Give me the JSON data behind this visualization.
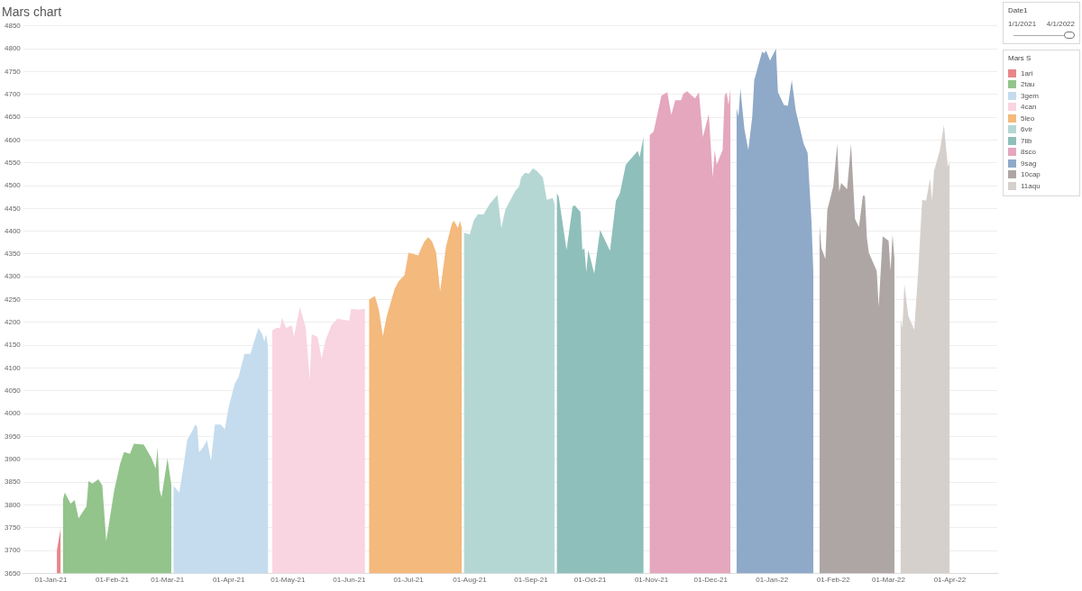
{
  "chart_data": {
    "type": "area",
    "title": "Mars chart",
    "legend_title": "Mars S",
    "legend": "top right",
    "grid": "y",
    "annotations": [
      "Date1",
      "1/1/2021",
      "4/1/2022"
    ],
    "xlim": [
      "2020-12-18",
      "2022-04-25"
    ],
    "xticks": [
      {
        "value": "2021-01-01",
        "label": "01-Jan-21"
      },
      {
        "value": "2021-02-01",
        "label": "01-Feb-21"
      },
      {
        "value": "2021-03-01",
        "label": "01-Mar-21"
      },
      {
        "value": "2021-04-01",
        "label": "01-Apr-21"
      },
      {
        "value": "2021-05-01",
        "label": "01-May-21"
      },
      {
        "value": "2021-06-01",
        "label": "01-Jun-21"
      },
      {
        "value": "2021-07-01",
        "label": "01-Jul-21"
      },
      {
        "value": "2021-08-01",
        "label": "01-Aug-21"
      },
      {
        "value": "2021-09-01",
        "label": "01-Sep-21"
      },
      {
        "value": "2021-10-01",
        "label": "01-Oct-21"
      },
      {
        "value": "2021-11-01",
        "label": "01-Nov-21"
      },
      {
        "value": "2021-12-01",
        "label": "01-Dec-21"
      },
      {
        "value": "2022-01-01",
        "label": "01-Jan-22"
      },
      {
        "value": "2022-02-01",
        "label": "01-Feb-22"
      },
      {
        "value": "2022-03-01",
        "label": "01-Mar-22"
      },
      {
        "value": "2022-04-01",
        "label": "01-Apr-22"
      }
    ],
    "ylim": [
      3650,
      4850
    ],
    "yticks": [
      3650,
      3700,
      3750,
      3800,
      3850,
      3900,
      3950,
      4000,
      4050,
      4100,
      4150,
      4200,
      4250,
      4300,
      4350,
      4400,
      4450,
      4500,
      4550,
      4600,
      4650,
      4700,
      4750,
      4800,
      4850
    ],
    "series": [
      {
        "name": "1ari",
        "color": "#e8868a",
        "x": [
          "2021-01-04",
          "2021-01-05",
          "2021-01-06"
        ],
        "values": [
          3700,
          3725,
          3750
        ]
      },
      {
        "name": "2tau",
        "color": "#93c48b",
        "x": [
          "2021-01-07",
          "2021-01-08",
          "2021-01-11",
          "2021-01-13",
          "2021-01-15",
          "2021-01-19",
          "2021-01-20",
          "2021-01-22",
          "2021-01-25",
          "2021-01-27",
          "2021-01-28",
          "2021-01-29",
          "2021-02-02",
          "2021-02-05",
          "2021-02-07",
          "2021-02-10",
          "2021-02-12",
          "2021-02-17",
          "2021-02-21",
          "2021-02-23",
          "2021-02-24",
          "2021-02-25",
          "2021-02-26",
          "2021-03-01",
          "2021-03-03"
        ],
        "values": [
          3810,
          3827,
          3803,
          3811,
          3771,
          3797,
          3852,
          3847,
          3856,
          3843,
          3783,
          3721,
          3831,
          3890,
          3916,
          3912,
          3934,
          3932,
          3902,
          3880,
          3926,
          3833,
          3817,
          3902,
          3843
        ]
      },
      {
        "name": "3gem",
        "color": "#c4dcee",
        "x": [
          "2021-03-04",
          "2021-03-05",
          "2021-03-07",
          "2021-03-09",
          "2021-03-11",
          "2021-03-14",
          "2021-03-15",
          "2021-03-16",
          "2021-03-17",
          "2021-03-19",
          "2021-03-21",
          "2021-03-23",
          "2021-03-25",
          "2021-03-28",
          "2021-03-30",
          "2021-04-01",
          "2021-04-04",
          "2021-04-06",
          "2021-04-09",
          "2021-04-12",
          "2021-04-13",
          "2021-04-16",
          "2021-04-18",
          "2021-04-19",
          "2021-04-20",
          "2021-04-21"
        ],
        "values": [
          3843,
          3837,
          3827,
          3882,
          3942,
          3966,
          3976,
          3972,
          3916,
          3926,
          3942,
          3896,
          3976,
          3976,
          3966,
          4015,
          4065,
          4081,
          4131,
          4131,
          4145,
          4188,
          4174,
          4158,
          4174,
          4141
        ]
      },
      {
        "name": "4can",
        "color": "#f9d4e1",
        "x": [
          "2021-04-23",
          "2021-04-25",
          "2021-04-27",
          "2021-04-28",
          "2021-04-30",
          "2021-05-03",
          "2021-05-04",
          "2021-05-07",
          "2021-05-10",
          "2021-05-12",
          "2021-05-13",
          "2021-05-16",
          "2021-05-18",
          "2021-05-20",
          "2021-05-23",
          "2021-05-26",
          "2021-06-01",
          "2021-06-02",
          "2021-06-06",
          "2021-06-09"
        ],
        "values": [
          4182,
          4188,
          4188,
          4210,
          4188,
          4194,
          4168,
          4234,
          4188,
          4075,
          4174,
          4168,
          4121,
          4161,
          4194,
          4208,
          4204,
          4230,
          4228,
          4230
        ]
      },
      {
        "name": "5leo",
        "color": "#f4b97c",
        "x": [
          "2021-06-11",
          "2021-06-14",
          "2021-06-16",
          "2021-06-18",
          "2021-06-20",
          "2021-06-24",
          "2021-06-26",
          "2021-06-29",
          "2021-07-01",
          "2021-07-06",
          "2021-07-07",
          "2021-07-09",
          "2021-07-11",
          "2021-07-13",
          "2021-07-15",
          "2021-07-17",
          "2021-07-20",
          "2021-07-23",
          "2021-07-24",
          "2021-07-26",
          "2021-07-27",
          "2021-07-28"
        ],
        "values": [
          4250,
          4258,
          4228,
          4170,
          4214,
          4274,
          4290,
          4304,
          4353,
          4347,
          4359,
          4377,
          4387,
          4377,
          4353,
          4268,
          4367,
          4417,
          4423,
          4407,
          4423,
          4407
        ]
      },
      {
        "name": "6vir",
        "color": "#b5d7d4",
        "x": [
          "2021-07-29",
          "2021-08-01",
          "2021-08-03",
          "2021-08-05",
          "2021-08-08",
          "2021-08-11",
          "2021-08-15",
          "2021-08-17",
          "2021-08-19",
          "2021-08-24",
          "2021-08-26",
          "2021-08-27",
          "2021-08-29",
          "2021-08-31",
          "2021-09-02",
          "2021-09-04",
          "2021-09-07",
          "2021-09-09",
          "2021-09-12",
          "2021-09-13"
        ],
        "values": [
          4397,
          4393,
          4423,
          4437,
          4437,
          4459,
          4480,
          4407,
          4447,
          4488,
          4498,
          4518,
          4528,
          4526,
          4538,
          4532,
          4518,
          4469,
          4473,
          4459
        ]
      },
      {
        "name": "7lib",
        "color": "#8fbfba",
        "x": [
          "2021-09-14",
          "2021-09-15",
          "2021-09-19",
          "2021-09-22",
          "2021-09-23",
          "2021-09-26",
          "2021-09-27",
          "2021-09-28",
          "2021-09-29",
          "2021-09-30",
          "2021-10-03",
          "2021-10-06",
          "2021-10-11",
          "2021-10-14",
          "2021-10-16",
          "2021-10-19",
          "2021-10-21",
          "2021-10-25",
          "2021-10-26",
          "2021-10-28"
        ],
        "values": [
          4483,
          4477,
          4359,
          4453,
          4457,
          4443,
          4359,
          4363,
          4310,
          4359,
          4307,
          4403,
          4357,
          4467,
          4483,
          4546,
          4556,
          4576,
          4562,
          4608
        ]
      },
      {
        "name": "8sco",
        "color": "#e4a7be",
        "x": [
          "2021-10-31",
          "2021-11-02",
          "2021-11-03",
          "2021-11-06",
          "2021-11-09",
          "2021-11-11",
          "2021-11-13",
          "2021-11-16",
          "2021-11-17",
          "2021-11-19",
          "2021-11-23",
          "2021-11-25",
          "2021-11-27",
          "2021-11-30",
          "2021-12-02",
          "2021-12-03",
          "2021-12-04",
          "2021-12-07",
          "2021-12-08",
          "2021-12-09",
          "2021-12-10",
          "2021-12-11"
        ],
        "values": [
          4610,
          4618,
          4637,
          4697,
          4705,
          4655,
          4687,
          4687,
          4701,
          4707,
          4691,
          4705,
          4606,
          4657,
          4518,
          4578,
          4546,
          4578,
          4697,
          4705,
          4677,
          4715
        ]
      },
      {
        "name": "9sag",
        "color": "#8fa9c8",
        "x": [
          "2021-12-14",
          "2021-12-15",
          "2021-12-16",
          "2021-12-18",
          "2021-12-20",
          "2021-12-22",
          "2021-12-23",
          "2021-12-27",
          "2021-12-28",
          "2021-12-29",
          "2021-12-31",
          "2022-01-03",
          "2022-01-04",
          "2022-01-07",
          "2022-01-09",
          "2022-01-11",
          "2022-01-13",
          "2022-01-17",
          "2022-01-19",
          "2022-01-21",
          "2022-01-22"
        ],
        "values": [
          4671,
          4651,
          4713,
          4625,
          4578,
          4651,
          4731,
          4794,
          4790,
          4796,
          4774,
          4800,
          4705,
          4677,
          4675,
          4731,
          4665,
          4592,
          4572,
          4419,
          4300
        ]
      },
      {
        "name": "10cap",
        "color": "#aea6a5",
        "x": [
          "2022-01-25",
          "2022-01-26",
          "2022-01-28",
          "2022-01-29",
          "2022-02-01",
          "2022-02-03",
          "2022-02-04",
          "2022-02-05",
          "2022-02-08",
          "2022-02-10",
          "2022-02-12",
          "2022-02-14",
          "2022-02-16",
          "2022-02-17",
          "2022-02-18",
          "2022-02-19",
          "2022-02-23",
          "2022-02-24",
          "2022-02-26",
          "2022-03-01",
          "2022-03-02",
          "2022-03-03",
          "2022-03-04"
        ],
        "values": [
          4417,
          4363,
          4339,
          4447,
          4498,
          4592,
          4486,
          4506,
          4492,
          4592,
          4427,
          4409,
          4478,
          4478,
          4387,
          4353,
          4313,
          4234,
          4389,
          4379,
          4313,
          4393,
          4339
        ]
      },
      {
        "name": "11aqu",
        "color": "#d6d0cd",
        "x": [
          "2022-03-07",
          "2022-03-08",
          "2022-03-09",
          "2022-03-11",
          "2022-03-14",
          "2022-03-16",
          "2022-03-18",
          "2022-03-20",
          "2022-03-22",
          "2022-03-23",
          "2022-03-24",
          "2022-03-27",
          "2022-03-29",
          "2022-03-31",
          "2022-04-01"
        ],
        "values": [
          4210,
          4188,
          4284,
          4214,
          4184,
          4313,
          4469,
          4467,
          4516,
          4467,
          4532,
          4578,
          4633,
          4542,
          4552
        ]
      }
    ]
  }
}
